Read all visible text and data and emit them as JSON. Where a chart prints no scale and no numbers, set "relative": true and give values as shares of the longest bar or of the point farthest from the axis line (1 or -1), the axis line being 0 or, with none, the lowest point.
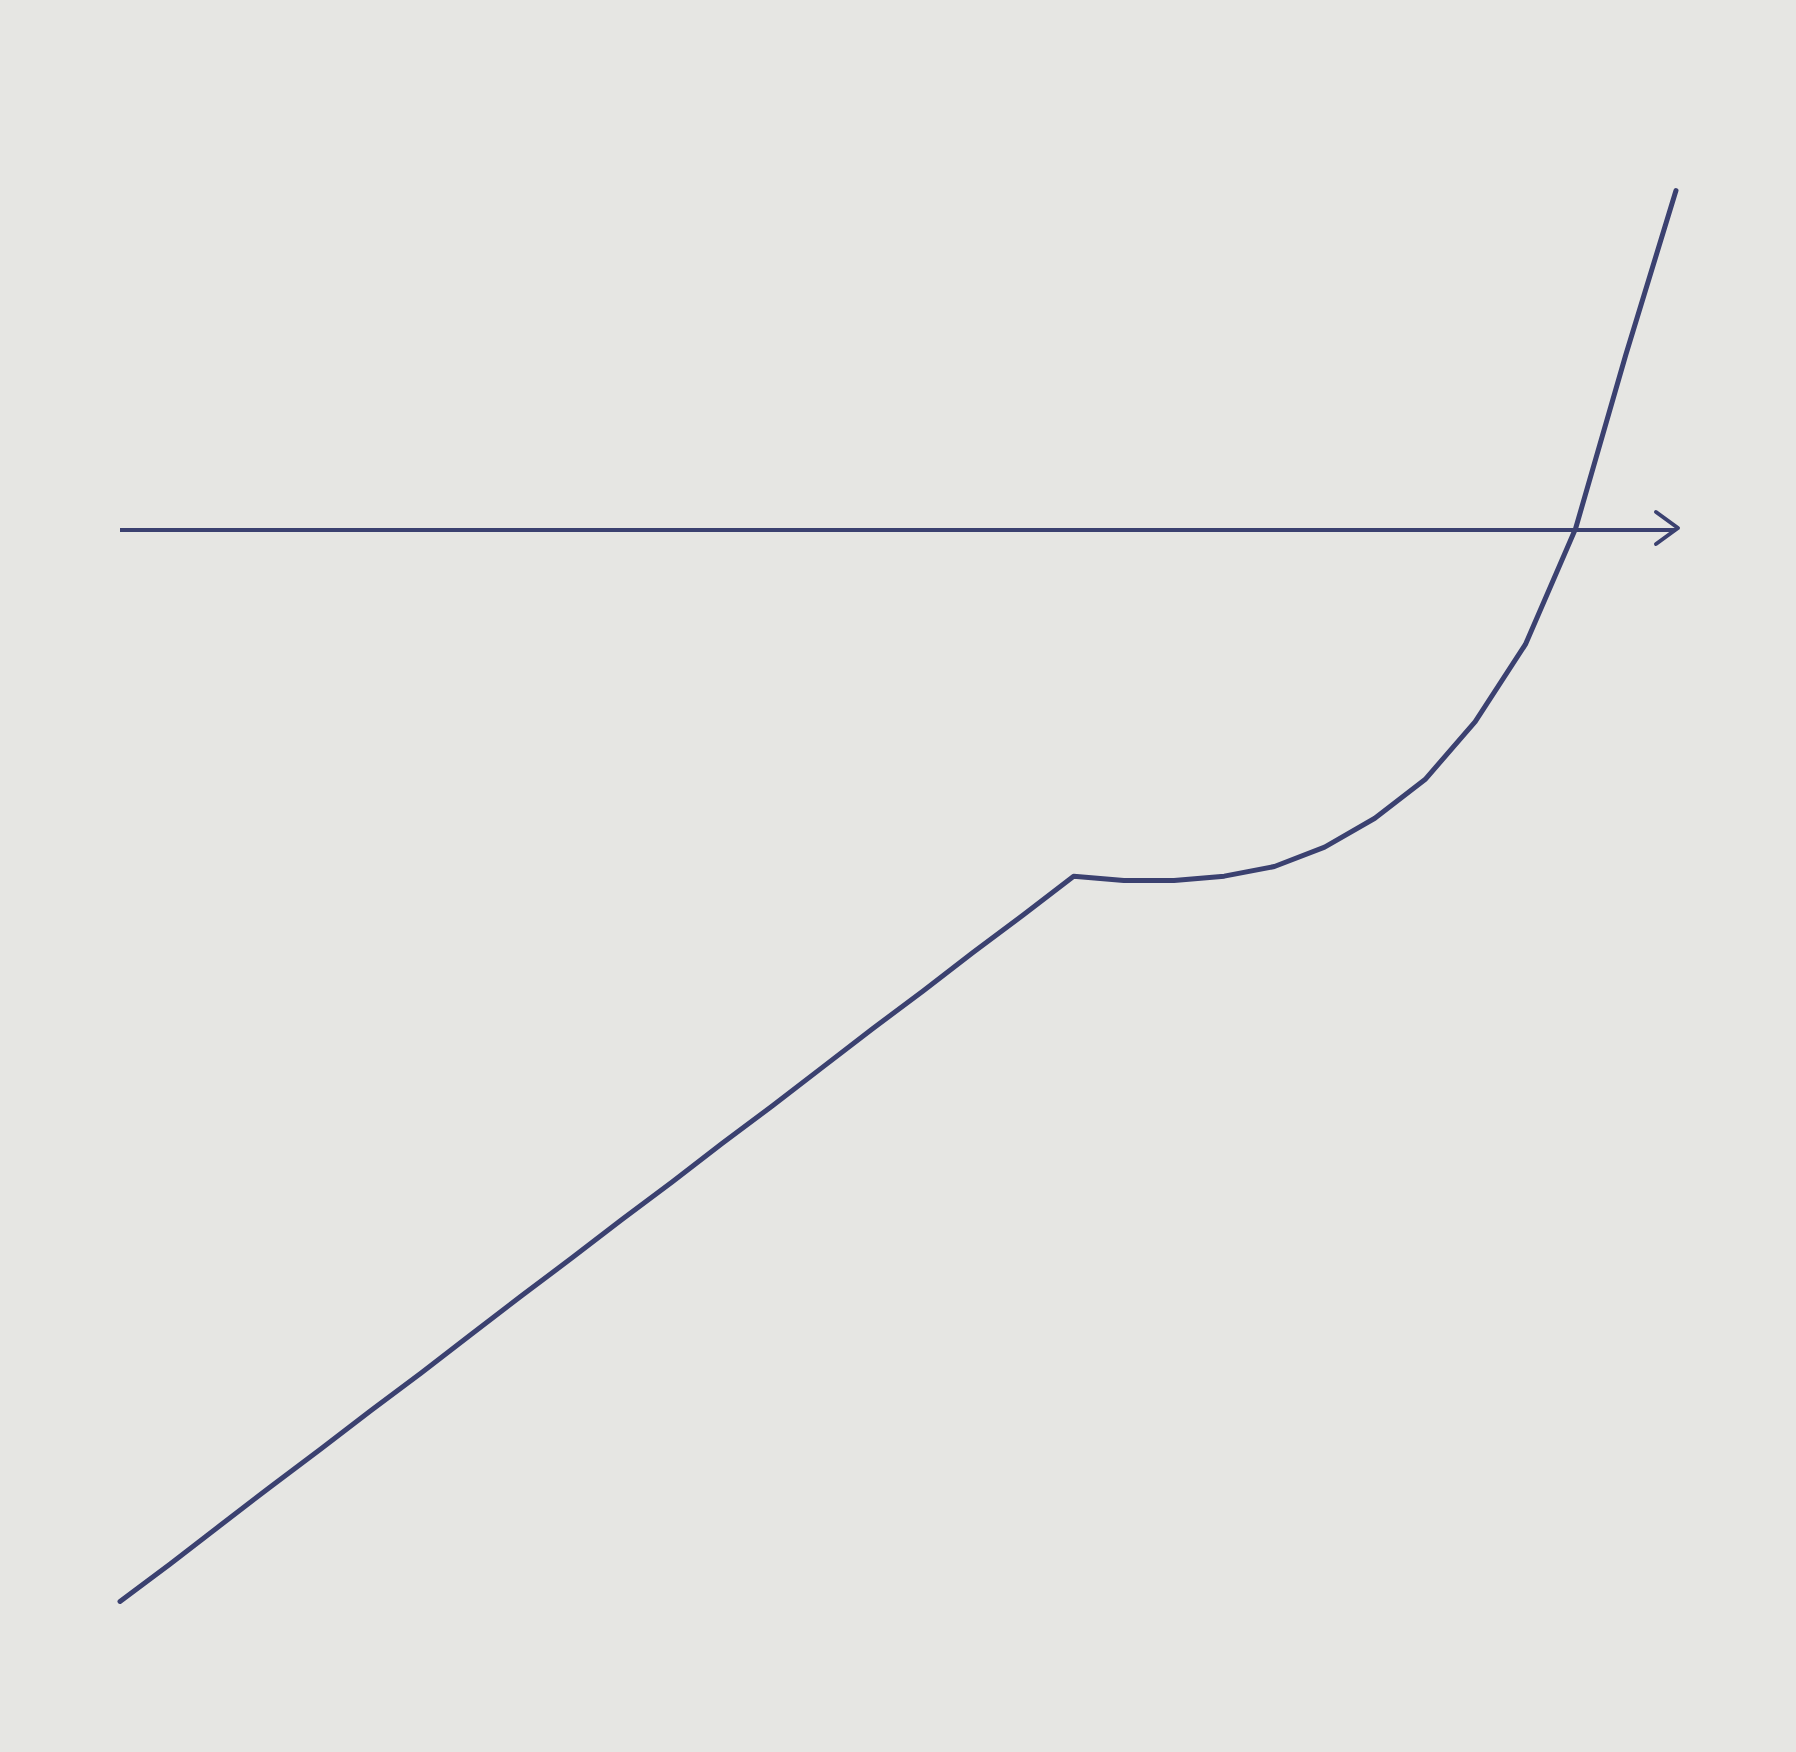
{
  "chart_data": {
    "type": "line",
    "relative": true,
    "categories": [
      null,
      null,
      null,
      null,
      null,
      null,
      null,
      null,
      null,
      null,
      null,
      null,
      null,
      null,
      null,
      null,
      null,
      null,
      null,
      null,
      null,
      null,
      null,
      null,
      null,
      null,
      null,
      null,
      null,
      null,
      null,
      null
    ],
    "values": [
      -1.0,
      -0.965,
      -0.929,
      -0.893,
      -0.858,
      -0.822,
      -0.787,
      -0.751,
      -0.715,
      -0.68,
      -0.644,
      -0.609,
      -0.573,
      -0.538,
      -0.502,
      -0.466,
      -0.431,
      -0.395,
      -0.36,
      -0.324,
      -0.328,
      -0.328,
      -0.324,
      -0.315,
      -0.297,
      -0.27,
      -0.234,
      -0.18,
      -0.108,
      0,
      0.162,
      0.315
    ],
    "color": "#3b4170",
    "marker": "none",
    "line_style": "solid",
    "grid": false,
    "ref_lines": [
      {
        "axis": "y",
        "value": 0,
        "color": "#3b4170"
      }
    ]
  }
}
